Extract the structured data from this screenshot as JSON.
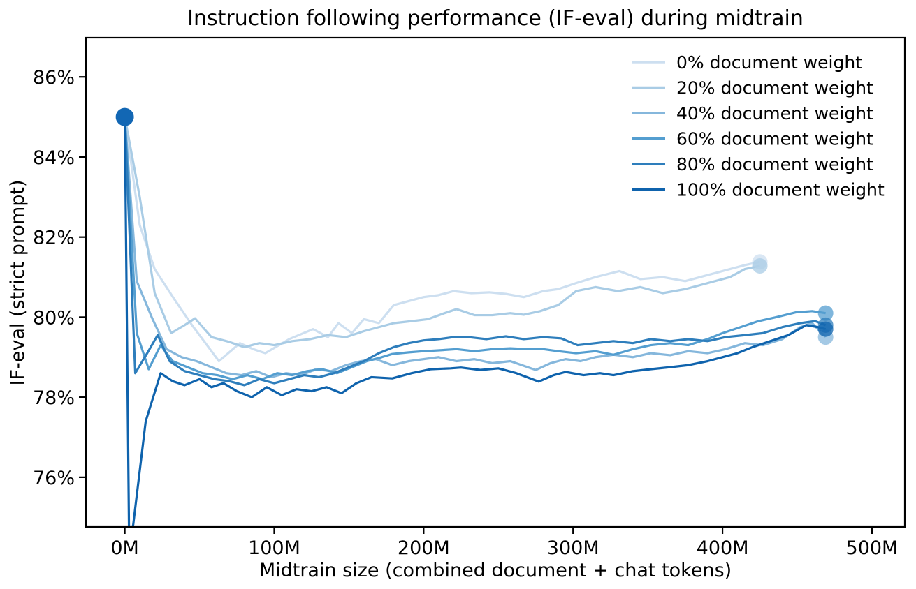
{
  "chart_data": {
    "type": "line",
    "title": "Instruction following performance (IF-eval) during midtrain",
    "xlabel": "Midtrain size (combined document + chat tokens)",
    "ylabel": "IF-eval (strict prompt)",
    "xlim": [
      -26,
      522
    ],
    "ylim": [
      74.76,
      86.98
    ],
    "grid": false,
    "legend_position": "upper right",
    "axis_color": "#000000",
    "x_ticks": [
      {
        "value": 0,
        "label": "0M"
      },
      {
        "value": 100,
        "label": "100M"
      },
      {
        "value": 200,
        "label": "200M"
      },
      {
        "value": 300,
        "label": "300M"
      },
      {
        "value": 400,
        "label": "400M"
      },
      {
        "value": 500,
        "label": "500M"
      }
    ],
    "y_ticks": [
      {
        "value": 76,
        "label": "76%"
      },
      {
        "value": 78,
        "label": "78%"
      },
      {
        "value": 80,
        "label": "80%"
      },
      {
        "value": 82,
        "label": "82%"
      },
      {
        "value": 84,
        "label": "84%"
      },
      {
        "value": 86,
        "label": "86%"
      }
    ],
    "start_marker": {
      "x": 0,
      "y": 85,
      "color": "#1267b4",
      "radius": 13
    },
    "end_marker_opacity": 0.75,
    "end_marker_radius": 11,
    "series": [
      {
        "name": "0% document weight",
        "color": "#cddff0",
        "x": [
          0,
          10,
          20,
          34,
          45,
          55,
          63,
          77,
          86,
          94,
          110,
          126,
          136,
          143,
          152,
          160,
          170,
          180,
          190,
          200,
          210,
          220,
          232,
          244,
          255,
          267,
          280,
          290,
          302,
          315,
          331,
          345,
          360,
          375,
          390,
          405,
          415,
          425
        ],
        "y": [
          85,
          82.3,
          81.2,
          80.4,
          79.8,
          79.3,
          78.9,
          79.35,
          79.2,
          79.1,
          79.45,
          79.7,
          79.5,
          79.85,
          79.6,
          79.95,
          79.85,
          80.3,
          80.4,
          80.5,
          80.55,
          80.65,
          80.6,
          80.62,
          80.58,
          80.5,
          80.65,
          80.7,
          80.85,
          81.0,
          81.15,
          80.95,
          81.0,
          80.9,
          81.05,
          81.2,
          81.3,
          81.38
        ]
      },
      {
        "name": "20% document weight",
        "color": "#a9cce5",
        "x": [
          0,
          10,
          20,
          31,
          40,
          47,
          58,
          70,
          80,
          90,
          100,
          112,
          124,
          136,
          148,
          160,
          170,
          180,
          192,
          203,
          214,
          222,
          234,
          246,
          258,
          267,
          278,
          290,
          302,
          315,
          330,
          345,
          360,
          375,
          390,
          405,
          415,
          425
        ],
        "y": [
          85,
          83.0,
          80.6,
          79.6,
          79.8,
          79.97,
          79.5,
          79.38,
          79.25,
          79.35,
          79.3,
          79.4,
          79.45,
          79.55,
          79.5,
          79.65,
          79.75,
          79.85,
          79.9,
          79.95,
          80.1,
          80.2,
          80.05,
          80.05,
          80.1,
          80.06,
          80.15,
          80.3,
          80.65,
          80.75,
          80.65,
          80.75,
          80.6,
          80.7,
          80.85,
          81.0,
          81.2,
          81.28
        ]
      },
      {
        "name": "40% document weight",
        "color": "#85b7dc",
        "x": [
          0,
          8,
          18,
          28,
          38,
          48,
          58,
          68,
          78,
          88,
          98,
          108,
          118,
          128,
          138,
          148,
          158,
          168,
          179,
          190,
          200,
          210,
          222,
          234,
          246,
          258,
          275,
          285,
          295,
          305,
          315,
          327,
          340,
          352,
          365,
          377,
          390,
          402,
          415,
          427,
          440,
          452,
          460,
          469
        ],
        "y": [
          85,
          80.9,
          80.0,
          79.2,
          79.0,
          78.9,
          78.75,
          78.6,
          78.55,
          78.65,
          78.5,
          78.6,
          78.55,
          78.7,
          78.65,
          78.8,
          78.9,
          78.95,
          78.8,
          78.9,
          78.95,
          79.0,
          78.9,
          78.95,
          78.85,
          78.9,
          78.68,
          78.85,
          78.95,
          78.9,
          79.0,
          79.06,
          79.0,
          79.1,
          79.05,
          79.15,
          79.1,
          79.2,
          79.35,
          79.3,
          79.45,
          79.75,
          79.85,
          79.5
        ]
      },
      {
        "name": "60% document weight",
        "color": "#549ed0",
        "x": [
          0,
          8,
          16,
          24,
          32,
          42,
          52,
          62,
          72,
          82,
          92,
          102,
          112,
          122,
          132,
          142,
          152,
          162,
          172,
          179,
          190,
          200,
          210,
          222,
          234,
          246,
          258,
          270,
          278,
          290,
          302,
          315,
          327,
          340,
          352,
          365,
          377,
          390,
          400,
          412,
          424,
          436,
          449,
          460,
          469
        ],
        "y": [
          85,
          79.6,
          78.7,
          79.3,
          78.9,
          78.75,
          78.6,
          78.55,
          78.45,
          78.55,
          78.45,
          78.6,
          78.55,
          78.65,
          78.7,
          78.6,
          78.75,
          78.9,
          79.0,
          79.08,
          79.12,
          79.15,
          79.17,
          79.2,
          79.15,
          79.2,
          79.22,
          79.2,
          79.21,
          79.15,
          79.1,
          79.15,
          79.06,
          79.2,
          79.3,
          79.35,
          79.3,
          79.45,
          79.6,
          79.75,
          79.9,
          80.0,
          80.12,
          80.15,
          80.1
        ]
      },
      {
        "name": "80% document weight",
        "color": "#2e7ebc",
        "x": [
          0,
          7,
          15,
          22,
          30,
          40,
          50,
          60,
          70,
          80,
          90,
          100,
          110,
          120,
          130,
          140,
          150,
          160,
          170,
          180,
          190,
          200,
          210,
          220,
          230,
          242,
          255,
          267,
          280,
          292,
          303,
          315,
          327,
          340,
          352,
          365,
          377,
          390,
          402,
          415,
          427,
          440,
          452,
          462,
          469
        ],
        "y": [
          85,
          78.6,
          79.1,
          79.55,
          78.9,
          78.65,
          78.55,
          78.45,
          78.4,
          78.3,
          78.45,
          78.35,
          78.45,
          78.55,
          78.5,
          78.6,
          78.75,
          78.9,
          79.1,
          79.25,
          79.35,
          79.42,
          79.45,
          79.5,
          79.5,
          79.45,
          79.52,
          79.45,
          79.5,
          79.47,
          79.3,
          79.35,
          79.4,
          79.35,
          79.45,
          79.4,
          79.45,
          79.4,
          79.5,
          79.55,
          79.6,
          79.75,
          79.85,
          79.9,
          79.8
        ]
      },
      {
        "name": "100% document weight",
        "color": "#0f63ad",
        "x": [
          0,
          3,
          14,
          24,
          32,
          40,
          50,
          58,
          66,
          75,
          85,
          95,
          105,
          115,
          125,
          135,
          145,
          155,
          165,
          179,
          192,
          205,
          218,
          225,
          238,
          250,
          262,
          277,
          287,
          295,
          307,
          318,
          327,
          340,
          352,
          365,
          377,
          390,
          400,
          410,
          420,
          432,
          444,
          456,
          464,
          469
        ],
        "y": [
          85,
          74.0,
          77.4,
          78.6,
          78.4,
          78.3,
          78.45,
          78.25,
          78.35,
          78.15,
          78.0,
          78.25,
          78.05,
          78.2,
          78.15,
          78.25,
          78.1,
          78.35,
          78.5,
          78.47,
          78.6,
          78.7,
          78.72,
          78.74,
          78.68,
          78.72,
          78.6,
          78.39,
          78.55,
          78.63,
          78.55,
          78.6,
          78.55,
          78.65,
          78.7,
          78.75,
          78.8,
          78.9,
          79.0,
          79.1,
          79.25,
          79.4,
          79.55,
          79.8,
          79.75,
          79.7
        ]
      }
    ]
  }
}
